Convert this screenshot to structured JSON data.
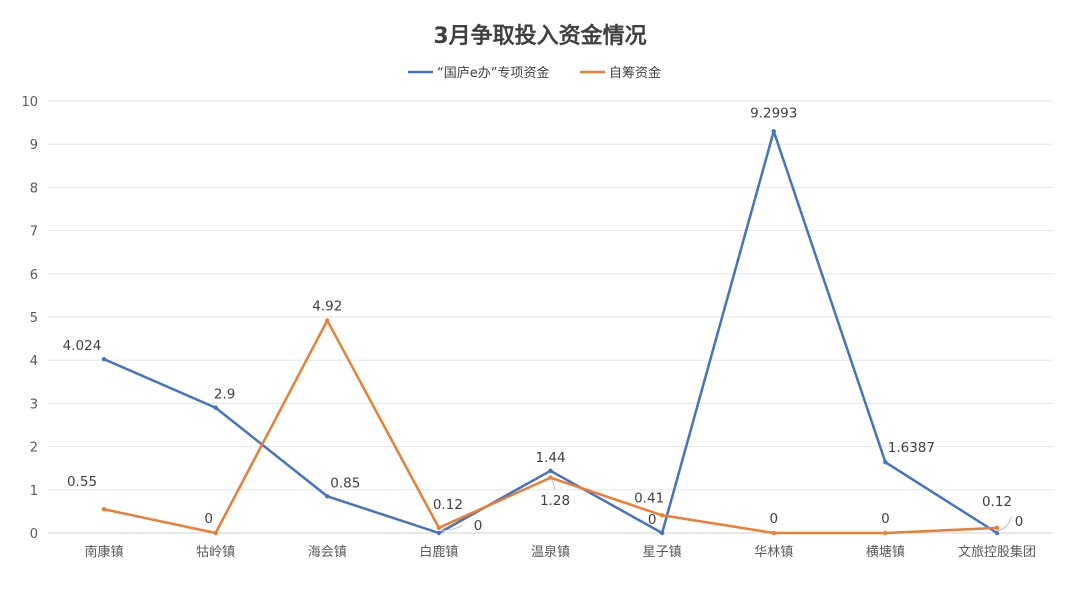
{
  "chart_data": {
    "type": "line",
    "title": "3月争取投入资金情况",
    "categories": [
      "南康镇",
      "牯岭镇",
      "海会镇",
      "白鹿镇",
      "温泉镇",
      "星子镇",
      "华林镇",
      "横塘镇",
      "文旅控股集团"
    ],
    "series": [
      {
        "name": "“国庐e办”专项资金",
        "color": "#4472c4",
        "values": [
          4.024,
          2.9,
          0.85,
          0,
          1.44,
          0,
          9.2993,
          1.6387,
          0
        ],
        "labels": [
          "4.024",
          "2.9",
          "0.85",
          "0",
          "1.44",
          "0",
          "9.2993",
          "1.6387",
          "0"
        ]
      },
      {
        "name": "自筹资金",
        "color": "#ed7d31",
        "values": [
          0.55,
          0,
          4.92,
          0.12,
          1.28,
          0.41,
          0,
          0,
          0.12
        ],
        "labels": [
          "0.55",
          "0",
          "4.92",
          "0.12",
          "1.28",
          "0.41",
          "0",
          "0",
          "0.12"
        ]
      }
    ],
    "ylim": [
      0,
      10
    ],
    "yticks": [
      "0",
      "1",
      "2",
      "3",
      "4",
      "5",
      "6",
      "7",
      "8",
      "9",
      "10"
    ],
    "grid": true,
    "legend_position": "top-center"
  }
}
